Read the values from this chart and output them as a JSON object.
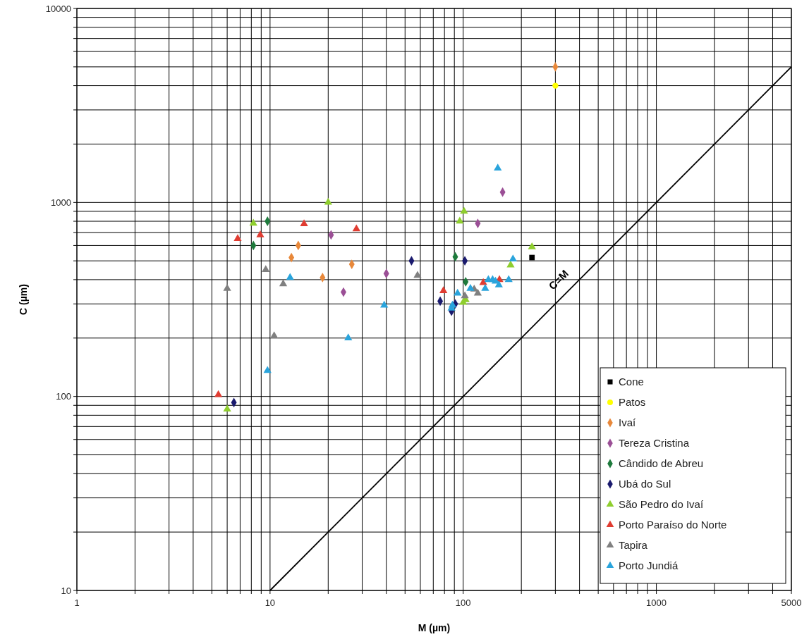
{
  "chart_data": {
    "type": "scatter",
    "xlabel": "M (µm)",
    "ylabel": "C (µm)",
    "log": "xy",
    "grid": true,
    "legend": "bottom right",
    "xlim": [
      1,
      5000
    ],
    "ylim": [
      10,
      10000
    ],
    "xticks": [
      1,
      {
        "value": 2,
        "label": null
      },
      {
        "value": 3,
        "label": null
      },
      {
        "value": 4,
        "label": null
      },
      {
        "value": 5,
        "label": null
      },
      {
        "value": 6,
        "label": null
      },
      {
        "value": 7,
        "label": null
      },
      {
        "value": 8,
        "label": null
      },
      {
        "value": 9,
        "label": null
      },
      10,
      {
        "value": 20,
        "label": null
      },
      {
        "value": 30,
        "label": null
      },
      {
        "value": 40,
        "label": null
      },
      {
        "value": 50,
        "label": null
      },
      {
        "value": 60,
        "label": null
      },
      {
        "value": 70,
        "label": null
      },
      {
        "value": 80,
        "label": null
      },
      {
        "value": 90,
        "label": null
      },
      100,
      {
        "value": 200,
        "label": null
      },
      {
        "value": 300,
        "label": null
      },
      {
        "value": 400,
        "label": null
      },
      {
        "value": 500,
        "label": null
      },
      {
        "value": 600,
        "label": null
      },
      {
        "value": 700,
        "label": null
      },
      {
        "value": 800,
        "label": null
      },
      {
        "value": 900,
        "label": null
      },
      1000,
      {
        "value": 2000,
        "label": null
      },
      {
        "value": 3000,
        "label": null
      },
      {
        "value": 4000,
        "label": null
      },
      5000
    ],
    "yticks": [
      10,
      {
        "value": 20,
        "label": null
      },
      {
        "value": 30,
        "label": null
      },
      {
        "value": 40,
        "label": null
      },
      {
        "value": 50,
        "label": null
      },
      {
        "value": 60,
        "label": null
      },
      {
        "value": 70,
        "label": null
      },
      {
        "value": 80,
        "label": null
      },
      {
        "value": 90,
        "label": null
      },
      100,
      {
        "value": 200,
        "label": null
      },
      {
        "value": 300,
        "label": null
      },
      {
        "value": 400,
        "label": null
      },
      {
        "value": 500,
        "label": null
      },
      {
        "value": 600,
        "label": null
      },
      {
        "value": 700,
        "label": null
      },
      {
        "value": 800,
        "label": null
      },
      {
        "value": 900,
        "label": null
      },
      1000,
      {
        "value": 2000,
        "label": null
      },
      {
        "value": 3000,
        "label": null
      },
      {
        "value": 4000,
        "label": null
      },
      {
        "value": 5000,
        "label": null
      },
      {
        "value": 6000,
        "label": null
      },
      {
        "value": 7000,
        "label": null
      },
      {
        "value": 8000,
        "label": null
      },
      {
        "value": 9000,
        "label": null
      },
      10000
    ],
    "annotations": [
      {
        "text": "C=M",
        "x": 350,
        "y": 350
      }
    ],
    "series": [
      {
        "type": "line",
        "color": "#000000",
        "marker": "none",
        "x": [
          10,
          5000
        ],
        "values": [
          10,
          5000
        ]
      },
      {
        "name": "Cone",
        "color": "#000000",
        "marker": "square",
        "x": [
          227
        ],
        "values": [
          520
        ]
      },
      {
        "name": "Patos",
        "color": "#ffff00",
        "marker": "circle",
        "x": [
          300
        ],
        "values": [
          4000
        ]
      },
      {
        "name": "Ivaí",
        "color": "#e8883a",
        "marker": "diamond",
        "x": [
          14,
          12.9,
          26.5,
          18.7,
          300
        ],
        "values": [
          600,
          520,
          480,
          410,
          5000
        ]
      },
      {
        "name": "Tereza Cristina",
        "color": "#9b4f96",
        "marker": "diamond",
        "x": [
          20.7,
          40,
          24,
          119,
          160
        ],
        "values": [
          680,
          430,
          345,
          780,
          1130
        ]
      },
      {
        "name": "Cândido de Abreu",
        "color": "#1e7a3c",
        "marker": "diamond",
        "x": [
          9.7,
          8.2,
          91,
          103
        ],
        "values": [
          800,
          600,
          525,
          390
        ]
      },
      {
        "name": "Ubá do Sul",
        "color": "#1a1a6e",
        "marker": "diamond",
        "x": [
          54,
          76,
          6.5,
          102,
          91,
          87
        ],
        "values": [
          500,
          310,
          93,
          500,
          300,
          275
        ]
      },
      {
        "name": "São Pedro do Ivaí",
        "color": "#8fce2e",
        "marker": "triangle",
        "x": [
          20,
          8.2,
          6,
          101,
          96,
          227,
          176,
          103,
          100
        ],
        "values": [
          1000,
          780,
          86,
          900,
          800,
          590,
          475,
          315,
          305
        ]
      },
      {
        "name": "Porto Paraíso do Norte",
        "color": "#e03c31",
        "marker": "triangle",
        "x": [
          15,
          28,
          8.9,
          6.8,
          79,
          5.4,
          154,
          127
        ],
        "values": [
          775,
          730,
          680,
          650,
          350,
          102,
          400,
          386
        ]
      },
      {
        "name": "Tapira",
        "color": "#808080",
        "marker": "triangle",
        "x": [
          9.5,
          58,
          11.7,
          6,
          10.5,
          114,
          119,
          102
        ],
        "values": [
          450,
          420,
          380,
          360,
          205,
          357,
          340,
          330
        ]
      },
      {
        "name": "Porto Jundiá",
        "color": "#2aa4dc",
        "marker": "triangle",
        "x": [
          12.7,
          39,
          25.4,
          9.7,
          151,
          181,
          135,
          142,
          147,
          153,
          172,
          130,
          109,
          93.5,
          88,
          87
        ],
        "values": [
          410,
          295,
          200,
          136,
          1500,
          510,
          400,
          400,
          392,
          375,
          400,
          360,
          360,
          340,
          295,
          285
        ]
      }
    ]
  }
}
